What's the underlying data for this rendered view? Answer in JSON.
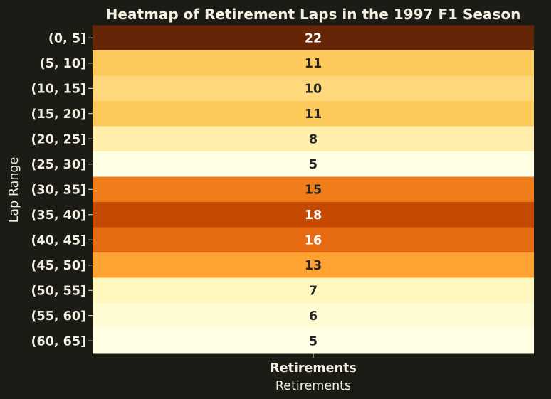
{
  "chart_data": {
    "type": "heatmap",
    "title": "Heatmap of Retirement Laps in the 1997 F1 Season",
    "xlabel": "Retirements",
    "ylabel": "Lap Range",
    "x_categories": [
      "Retirements"
    ],
    "categories": [
      "(0, 5]",
      "(5, 10]",
      "(10, 15]",
      "(15, 20]",
      "(20, 25]",
      "(25, 30]",
      "(30, 35]",
      "(35, 40]",
      "(40, 45]",
      "(45, 50]",
      "(50, 55]",
      "(55, 60]",
      "(60, 65]"
    ],
    "values": [
      22,
      11,
      10,
      11,
      8,
      5,
      15,
      18,
      16,
      13,
      7,
      6,
      5
    ],
    "colormap": "YlOrBr",
    "value_range": [
      5,
      22
    ],
    "colorbar": false,
    "grid": false
  },
  "colors": {
    "background": "#1b1c16",
    "text": "#f4efe0",
    "dark_label": "#262626"
  }
}
